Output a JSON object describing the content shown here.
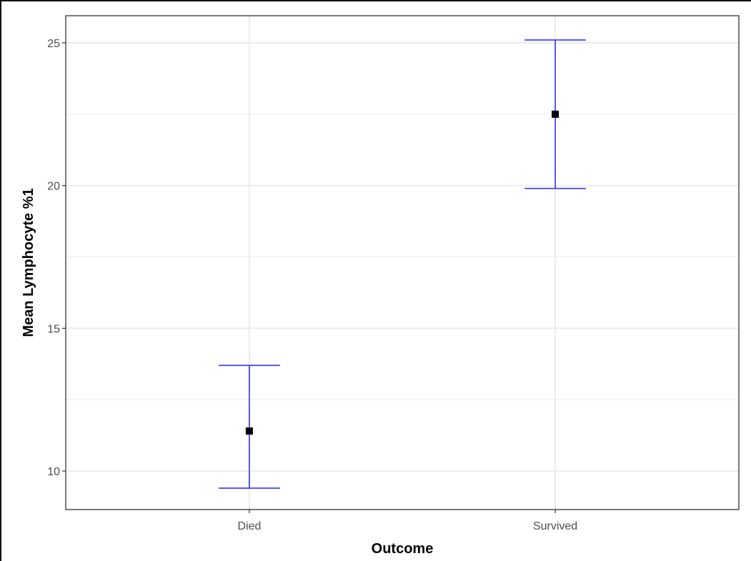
{
  "chart_data": {
    "type": "errorbar",
    "title": "",
    "xlabel": "Outcome",
    "ylabel": "Mean Lymphocyte %1",
    "categories": [
      "Died",
      "Survived"
    ],
    "points": [
      {
        "category": "Died",
        "mean": 11.4,
        "lower": 9.4,
        "upper": 13.7
      },
      {
        "category": "Survived",
        "mean": 22.5,
        "lower": 19.9,
        "upper": 25.1
      }
    ],
    "ylim": [
      8.65,
      25.95
    ],
    "yticks": [
      10,
      15,
      20,
      25
    ],
    "yminor": [
      12.5,
      17.5,
      22.5
    ],
    "grid": true,
    "errorbar_color": "#3333ff",
    "point_color": "#000000",
    "gridline_color": "#ebebeb",
    "panel_border_color": "#333333"
  }
}
